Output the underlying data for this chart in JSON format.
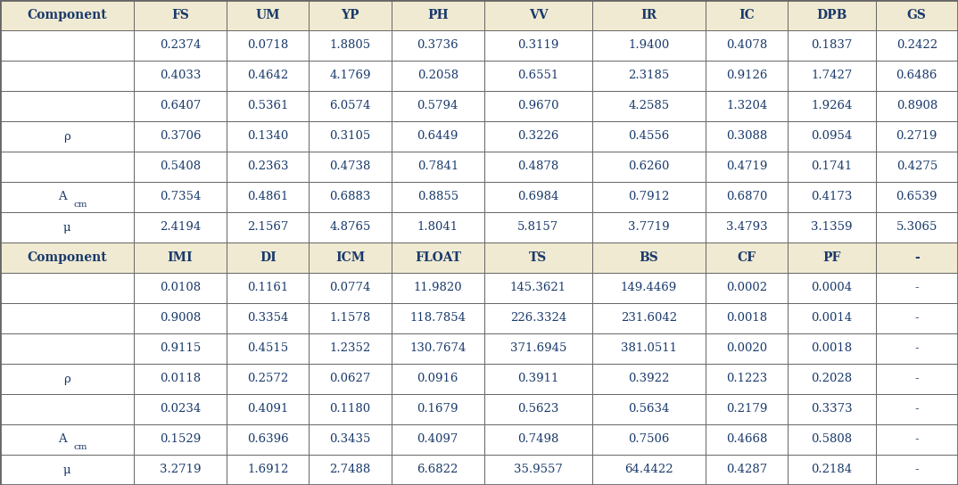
{
  "header_bg": "#f0ead2",
  "header_text_color": "#1a3a6b",
  "data_text_color": "#1a3a6b",
  "border_color": "#666666",
  "header1": [
    "Component",
    "FS",
    "UM",
    "YP",
    "PH",
    "VV",
    "IR",
    "IC",
    "DPB",
    "GS"
  ],
  "header2": [
    "Component",
    "IMI",
    "DI",
    "ICM",
    "FLOAT",
    "TS",
    "BS",
    "CF",
    "PF",
    "-"
  ],
  "row_labels_top": [
    "",
    "",
    "",
    "ρ",
    "",
    "A_cm",
    "μ"
  ],
  "row_labels_bot": [
    "",
    "",
    "",
    "ρ",
    "",
    "A_cm",
    "μ"
  ],
  "data_top": [
    [
      "0.2374",
      "0.0718",
      "1.8805",
      "0.3736",
      "0.3119",
      "1.9400",
      "0.4078",
      "0.1837",
      "0.2422"
    ],
    [
      "0.4033",
      "0.4642",
      "4.1769",
      "0.2058",
      "0.6551",
      "2.3185",
      "0.9126",
      "1.7427",
      "0.6486"
    ],
    [
      "0.6407",
      "0.5361",
      "6.0574",
      "0.5794",
      "0.9670",
      "4.2585",
      "1.3204",
      "1.9264",
      "0.8908"
    ],
    [
      "0.3706",
      "0.1340",
      "0.3105",
      "0.6449",
      "0.3226",
      "0.4556",
      "0.3088",
      "0.0954",
      "0.2719"
    ],
    [
      "0.5408",
      "0.2363",
      "0.4738",
      "0.7841",
      "0.4878",
      "0.6260",
      "0.4719",
      "0.1741",
      "0.4275"
    ],
    [
      "0.7354",
      "0.4861",
      "0.6883",
      "0.8855",
      "0.6984",
      "0.7912",
      "0.6870",
      "0.4173",
      "0.6539"
    ],
    [
      "2.4194",
      "2.1567",
      "4.8765",
      "1.8041",
      "5.8157",
      "3.7719",
      "3.4793",
      "3.1359",
      "5.3065"
    ]
  ],
  "data_bot": [
    [
      "0.0108",
      "0.1161",
      "0.0774",
      "11.9820",
      "145.3621",
      "149.4469",
      "0.0002",
      "0.0004",
      "-"
    ],
    [
      "0.9008",
      "0.3354",
      "1.1578",
      "118.7854",
      "226.3324",
      "231.6042",
      "0.0018",
      "0.0014",
      "-"
    ],
    [
      "0.9115",
      "0.4515",
      "1.2352",
      "130.7674",
      "371.6945",
      "381.0511",
      "0.0020",
      "0.0018",
      "-"
    ],
    [
      "0.0118",
      "0.2572",
      "0.0627",
      "0.0916",
      "0.3911",
      "0.3922",
      "0.1223",
      "0.2028",
      "-"
    ],
    [
      "0.0234",
      "0.4091",
      "0.1180",
      "0.1679",
      "0.5623",
      "0.5634",
      "0.2179",
      "0.3373",
      "-"
    ],
    [
      "0.1529",
      "0.6396",
      "0.3435",
      "0.4097",
      "0.7498",
      "0.7506",
      "0.4668",
      "0.5808",
      "-"
    ],
    [
      "3.2719",
      "1.6912",
      "2.7488",
      "6.6822",
      "35.9557",
      "64.4422",
      "0.4287",
      "0.2184",
      "-"
    ]
  ],
  "col_widths_raw": [
    1.3,
    0.9,
    0.8,
    0.8,
    0.9,
    1.05,
    1.1,
    0.8,
    0.85,
    0.8
  ],
  "figsize": [
    10.74,
    5.44
  ],
  "dpi": 100,
  "fontsize_header": 10,
  "fontsize_data": 9.5
}
